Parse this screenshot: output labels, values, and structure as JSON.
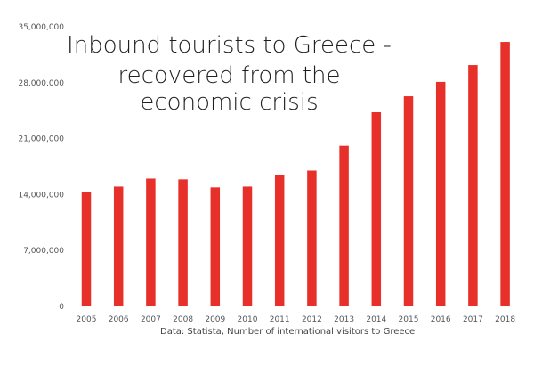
{
  "chart_data": {
    "type": "bar",
    "title_line1": "Inbound tourists to Greece -",
    "title_line2": "recovered from the economic crisis",
    "caption": "Data: Statista, Number of international visitors to Greece",
    "xlabel": "",
    "ylabel": "",
    "categories": [
      "2005",
      "2006",
      "2007",
      "2008",
      "2009",
      "2010",
      "2011",
      "2012",
      "2013",
      "2014",
      "2015",
      "2016",
      "2017",
      "2018"
    ],
    "series": [
      {
        "values": [
          14300000,
          15000000,
          16000000,
          15900000,
          14900000,
          15000000,
          16400000,
          17000000,
          20100000,
          24300000,
          26300000,
          28100000,
          30200000,
          33100000
        ],
        "color": "#e8302a"
      }
    ],
    "ylim": [
      0,
      35000000
    ],
    "yticks": [
      0,
      7000000,
      14000000,
      21000000,
      28000000,
      35000000
    ],
    "ytick_labels": [
      "0",
      "7,000,000",
      "14,000,000",
      "21,000,000",
      "28,000,000",
      "35,000,000"
    ],
    "grid": false,
    "legend": "none"
  }
}
